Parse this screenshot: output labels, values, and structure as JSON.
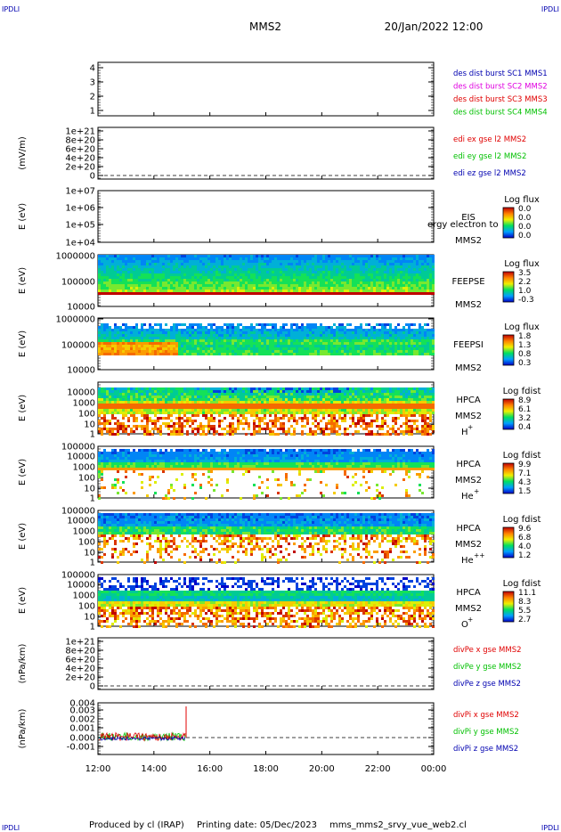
{
  "corner_labels": {
    "tl": "IPDLI",
    "tr": "IPDLI",
    "bl": "IPDLI",
    "br": "IPDLI"
  },
  "header": {
    "title": "MMS2",
    "datetime": "20/Jan/2022 12:00"
  },
  "footer": {
    "producer": "Produced by cl (IRAP)",
    "printing_date": "Printing date: 05/Dec/2023",
    "file": "mms_mms2_srvy_vue_web2.cl"
  },
  "colors": {
    "blue": "#0000b0",
    "magenta": "#e000e0",
    "red": "#e00000",
    "green": "#00c000"
  },
  "chart_data": [
    {
      "id": "p1",
      "type": "line",
      "ylabel": "",
      "yticks": [
        "1",
        "2",
        "3",
        "4"
      ],
      "legend": [
        {
          "text": "des dist burst SC1 MMS1",
          "color": "#0000b0"
        },
        {
          "text": "des dist burst SC2 MMS2",
          "color": "#e000e0"
        },
        {
          "text": "des dist burst SC3 MMS3",
          "color": "#e00000"
        },
        {
          "text": "des dist burst SC4 MMS4",
          "color": "#00c000"
        }
      ]
    },
    {
      "id": "p2",
      "type": "line",
      "ylabel": "(mV/m)",
      "yticks": [
        "0",
        "2e+20",
        "4e+20",
        "6e+20",
        "8e+20",
        "1e+21"
      ],
      "legend": [
        {
          "text": "edi ex gse l2 MMS2",
          "color": "#e00000"
        },
        {
          "text": "edi ey gse l2 MMS2",
          "color": "#00c000"
        },
        {
          "text": "edi ez gse l2 MMS2",
          "color": "#0000b0"
        }
      ]
    },
    {
      "id": "p3",
      "type": "heatmap",
      "ylabel": "E (eV)",
      "yticks": [
        "1e+04",
        "1e+05",
        "1e+06",
        "1e+07"
      ],
      "instrument": [
        "EIS",
        "MMS2"
      ],
      "overlay": "ergy electron to",
      "colorbar": {
        "title": "Log flux",
        "ticks": [
          "0.0",
          "0.0",
          "0.0",
          "0.0"
        ]
      }
    },
    {
      "id": "p4",
      "type": "heatmap",
      "ylabel": "E (eV)",
      "yticks": [
        "10000",
        "100000",
        "1000000"
      ],
      "instrument": [
        "FEEPSE",
        "MMS2"
      ],
      "colorbar": {
        "title": "Log flux",
        "ticks": [
          "3.5",
          "2.2",
          "1.0",
          "-0.3"
        ]
      }
    },
    {
      "id": "p5",
      "type": "heatmap",
      "ylabel": "E (eV)",
      "yticks": [
        "10000",
        "100000",
        "1000000"
      ],
      "instrument": [
        "FEEPSI",
        "MMS2"
      ],
      "colorbar": {
        "title": "Log flux",
        "ticks": [
          "1.8",
          "1.3",
          "0.8",
          "0.3"
        ]
      }
    },
    {
      "id": "p6",
      "type": "heatmap",
      "ylabel": "E (eV)",
      "yticks": [
        "1",
        "10",
        "100",
        "1000",
        "10000"
      ],
      "instrument": [
        "HPCA",
        "MMS2"
      ],
      "species": "H",
      "charge": "+",
      "colorbar": {
        "title": "Log fdist",
        "ticks": [
          "8.9",
          "6.1",
          "3.2",
          "0.4"
        ]
      }
    },
    {
      "id": "p7",
      "type": "heatmap",
      "ylabel": "E (eV)",
      "yticks": [
        "1",
        "10",
        "100",
        "1000",
        "10000",
        "100000"
      ],
      "instrument": [
        "HPCA",
        "MMS2"
      ],
      "species": "He",
      "charge": "+",
      "colorbar": {
        "title": "Log fdist",
        "ticks": [
          "9.9",
          "7.1",
          "4.3",
          "1.5"
        ]
      }
    },
    {
      "id": "p8",
      "type": "heatmap",
      "ylabel": "E (eV)",
      "yticks": [
        "1",
        "10",
        "100",
        "1000",
        "10000",
        "100000"
      ],
      "instrument": [
        "HPCA",
        "MMS2"
      ],
      "species": "He",
      "charge": "++",
      "colorbar": {
        "title": "Log fdist",
        "ticks": [
          "9.6",
          "6.8",
          "4.0",
          "1.2"
        ]
      }
    },
    {
      "id": "p9",
      "type": "heatmap",
      "ylabel": "E (eV)",
      "yticks": [
        "1",
        "10",
        "100",
        "1000",
        "10000",
        "100000"
      ],
      "instrument": [
        "HPCA",
        "MMS2"
      ],
      "species": "O",
      "charge": "+",
      "colorbar": {
        "title": "Log fdist",
        "ticks": [
          "11.1",
          "8.3",
          "5.5",
          "2.7"
        ]
      }
    },
    {
      "id": "p10",
      "type": "line",
      "ylabel": "(nPa/km)",
      "yticks": [
        "0",
        "2e+20",
        "4e+20",
        "6e+20",
        "8e+20",
        "1e+21"
      ],
      "legend": [
        {
          "text": "divPe x gse MMS2",
          "color": "#e00000"
        },
        {
          "text": "divPe y gse MMS2",
          "color": "#00c000"
        },
        {
          "text": "divPe z gse MMS2",
          "color": "#0000b0"
        }
      ]
    },
    {
      "id": "p11",
      "type": "line",
      "ylabel": "(nPa/km)",
      "yticks": [
        "-0.001",
        "0.000",
        "0.001",
        "0.002",
        "0.003",
        "0.004"
      ],
      "legend": [
        {
          "text": "divPi x gse MMS2",
          "color": "#e00000"
        },
        {
          "text": "divPi y gse MMS2",
          "color": "#00c000"
        },
        {
          "text": "divPi z gse MMS2",
          "color": "#0000b0"
        }
      ],
      "data_end": "15:10",
      "spike": {
        "time": "15:10",
        "value": 0.0035
      }
    }
  ],
  "xaxis": {
    "ticks": [
      "12:00",
      "14:00",
      "16:00",
      "18:00",
      "20:00",
      "22:00",
      "00:00"
    ]
  }
}
